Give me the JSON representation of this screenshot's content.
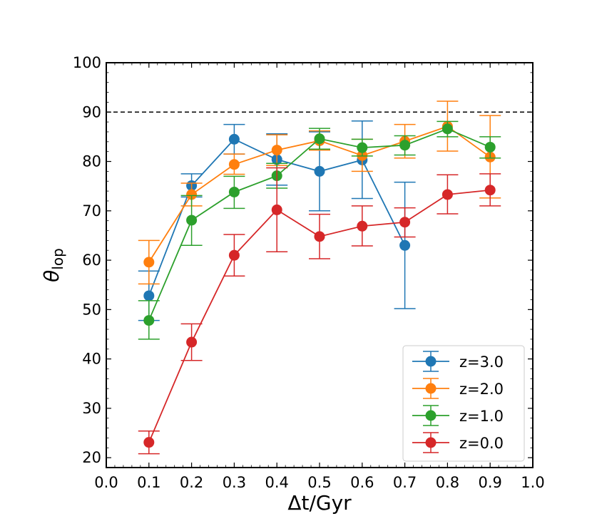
{
  "chart_data": {
    "type": "line",
    "title": "",
    "xlabel": "Δt/Gyr",
    "ylabel_symbol": "θ",
    "ylabel_subscript": "lop",
    "xlim": [
      0.0,
      1.0
    ],
    "ylim": [
      18,
      100
    ],
    "xticks": [
      0.0,
      0.1,
      0.2,
      0.3,
      0.4,
      0.5,
      0.6,
      0.7,
      0.8,
      0.9,
      1.0
    ],
    "xtick_labels": [
      "0.0",
      "0.1",
      "0.2",
      "0.3",
      "0.4",
      "0.5",
      "0.6",
      "0.7",
      "0.8",
      "0.9",
      "1.0"
    ],
    "yticks": [
      20,
      30,
      40,
      50,
      60,
      70,
      80,
      90,
      100
    ],
    "ytick_labels": [
      "20",
      "30",
      "40",
      "50",
      "60",
      "70",
      "80",
      "90",
      "100"
    ],
    "reference_line": {
      "y": 90,
      "style": "dashed",
      "color": "#000000"
    },
    "legend_position": "lower-right",
    "x": [
      0.1,
      0.2,
      0.3,
      0.4,
      0.5,
      0.6,
      0.7,
      0.8,
      0.9
    ],
    "series": [
      {
        "name": "z=3.0",
        "color": "#1f77b4",
        "values": [
          52.8,
          75.1,
          84.5,
          80.4,
          78.0,
          80.3,
          63.0,
          null,
          null
        ],
        "lower": [
          47.8,
          72.8,
          81.5,
          75.2,
          70.0,
          72.5,
          50.2,
          null,
          null
        ],
        "upper": [
          57.8,
          77.5,
          87.5,
          85.6,
          86.0,
          88.2,
          75.8,
          null,
          null
        ]
      },
      {
        "name": "z=2.0",
        "color": "#ff7f0e",
        "values": [
          59.6,
          73.3,
          79.4,
          82.3,
          84.2,
          81.2,
          84.1,
          87.1,
          80.9
        ],
        "lower": [
          55.2,
          71.0,
          77.4,
          79.2,
          82.3,
          78.0,
          80.7,
          82.1,
          72.6
        ],
        "upper": [
          64.0,
          75.6,
          81.5,
          85.4,
          86.2,
          84.5,
          87.5,
          92.2,
          89.3
        ]
      },
      {
        "name": "z=1.0",
        "color": "#2ca02c",
        "values": [
          47.8,
          68.1,
          73.8,
          77.1,
          84.6,
          82.8,
          83.3,
          86.6,
          82.9
        ],
        "lower": [
          44.0,
          63.0,
          70.5,
          74.6,
          82.5,
          81.1,
          81.3,
          85.0,
          80.7
        ],
        "upper": [
          51.8,
          73.1,
          77.0,
          79.6,
          86.7,
          84.5,
          85.2,
          88.1,
          85.0
        ]
      },
      {
        "name": "z=0.0",
        "color": "#d62728",
        "values": [
          23.1,
          43.4,
          61.0,
          70.2,
          64.8,
          66.9,
          67.7,
          73.3,
          74.2
        ],
        "lower": [
          20.8,
          39.7,
          56.8,
          61.7,
          60.3,
          62.9,
          64.7,
          69.4,
          71.0
        ],
        "upper": [
          25.4,
          47.1,
          65.2,
          78.7,
          69.3,
          71.0,
          70.6,
          77.3,
          77.5
        ]
      }
    ]
  }
}
